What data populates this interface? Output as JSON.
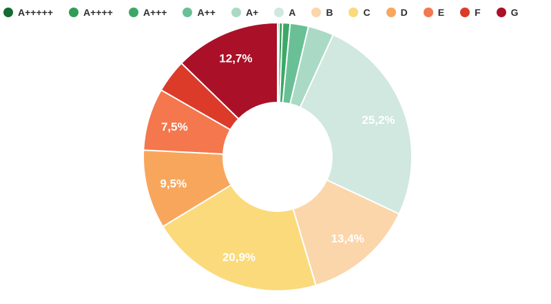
{
  "chart_data": {
    "type": "pie",
    "subtype": "donut",
    "title": "",
    "categories": [
      "A+++++",
      "A++++",
      "A+++",
      "A++",
      "A+",
      "A",
      "B",
      "C",
      "D",
      "E",
      "F",
      "G"
    ],
    "values": [
      0.2,
      0.4,
      0.9,
      2.2,
      3.1,
      25.2,
      13.4,
      20.9,
      9.5,
      7.5,
      4.0,
      12.7
    ],
    "colors": [
      "#146b33",
      "#2f9e54",
      "#3ca868",
      "#6ac096",
      "#aadac6",
      "#d0e8df",
      "#fbd6ab",
      "#fada7b",
      "#f9a65d",
      "#f4774d",
      "#dc3b2a",
      "#aa1128"
    ],
    "slice_labels": [
      "",
      "",
      "",
      "",
      "",
      "25,2%",
      "13,4%",
      "20,9%",
      "9,5%",
      "7,5%",
      "",
      "12,7%"
    ],
    "label_color": "#ffffff",
    "divider_color": "#ffffff",
    "background_color": "#ffffff",
    "legend_position": "top",
    "start_angle_deg": 0,
    "direction": "clockwise",
    "inner_radius_ratio": 0.405,
    "label_radius_ratio": 0.8
  }
}
